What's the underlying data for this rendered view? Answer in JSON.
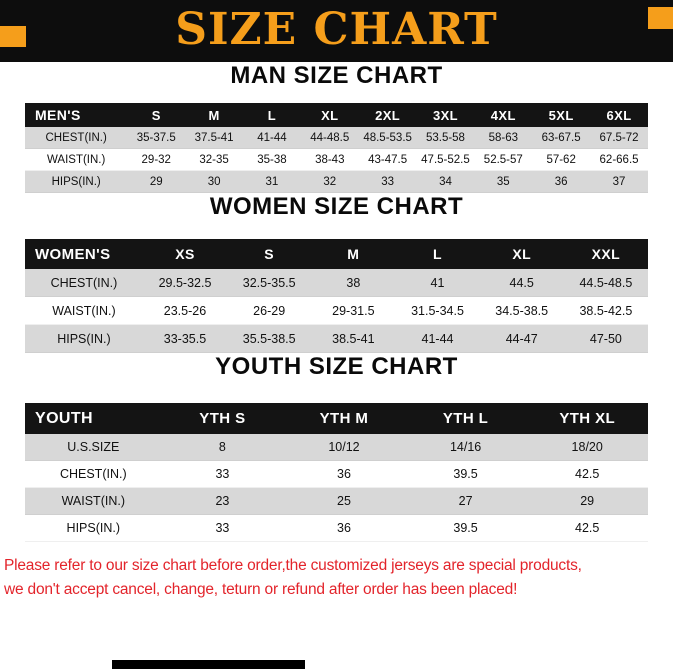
{
  "banner": {
    "title": "SIZE CHART"
  },
  "colors": {
    "accent_orange": "#F59E1B",
    "banner_bg": "#0D0D0D",
    "table_header_bg": "#141414",
    "row_gray": "#D8D8D8",
    "footer_red": "#E3242B"
  },
  "sections": [
    {
      "id": "man",
      "heading": "MAN SIZE CHART",
      "table": {
        "header": [
          "MEN'S",
          "S",
          "M",
          "L",
          "XL",
          "2XL",
          "3XL",
          "4XL",
          "5XL",
          "6XL"
        ],
        "rows": [
          {
            "label": "CHEST(IN.)",
            "values": [
              "35-37.5",
              "37.5-41",
              "41-44",
              "44-48.5",
              "48.5-53.5",
              "53.5-58",
              "58-63",
              "63-67.5",
              "67.5-72"
            ]
          },
          {
            "label": "WAIST(IN.)",
            "values": [
              "29-32",
              "32-35",
              "35-38",
              "38-43",
              "43-47.5",
              "47.5-52.5",
              "52.5-57",
              "57-62",
              "62-66.5"
            ]
          },
          {
            "label": "HIPS(IN.)",
            "values": [
              "29",
              "30",
              "31",
              "32",
              "33",
              "34",
              "35",
              "36",
              "37"
            ]
          }
        ]
      }
    },
    {
      "id": "women",
      "heading": "WOMEN SIZE CHART",
      "table": {
        "header": [
          "WOMEN'S",
          "XS",
          "S",
          "M",
          "L",
          "XL",
          "XXL"
        ],
        "rows": [
          {
            "label": "CHEST(IN.)",
            "values": [
              "29.5-32.5",
              "32.5-35.5",
              "38",
              "41",
              "44.5",
              "44.5-48.5"
            ]
          },
          {
            "label": "WAIST(IN.)",
            "values": [
              "23.5-26",
              "26-29",
              "29-31.5",
              "31.5-34.5",
              "34.5-38.5",
              "38.5-42.5"
            ]
          },
          {
            "label": "HIPS(IN.)",
            "values": [
              "33-35.5",
              "35.5-38.5",
              "38.5-41",
              "41-44",
              "44-47",
              "47-50"
            ]
          }
        ]
      }
    },
    {
      "id": "youth",
      "heading": "YOUTH SIZE CHART",
      "table": {
        "header": [
          "YOUTH",
          "YTH S",
          "YTH M",
          "YTH L",
          "YTH XL"
        ],
        "rows": [
          {
            "label": "U.S.SIZE",
            "values": [
              "8",
              "10/12",
              "14/16",
              "18/20"
            ]
          },
          {
            "label": "CHEST(IN.)",
            "values": [
              "33",
              "36",
              "39.5",
              "42.5"
            ]
          },
          {
            "label": "WAIST(IN.)",
            "values": [
              "23",
              "25",
              "27",
              "29"
            ]
          },
          {
            "label": "HIPS(IN.)",
            "values": [
              "33",
              "36",
              "39.5",
              "42.5"
            ]
          }
        ]
      }
    }
  ],
  "footer": {
    "line1": "Please refer to our size chart before order,the customized jerseys are special products,",
    "line2": "we don't accept cancel, change, teturn or refund after order has been placed!"
  }
}
